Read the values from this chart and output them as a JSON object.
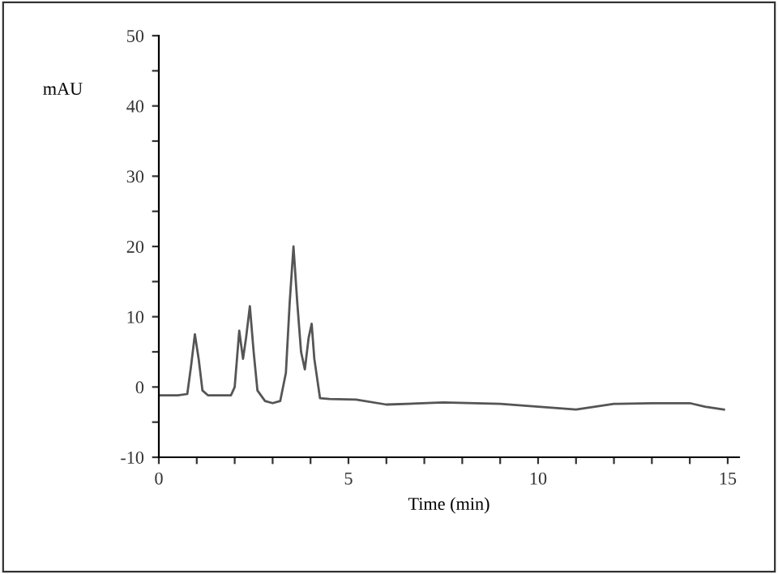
{
  "chart_data": {
    "type": "line",
    "xlabel": "Time (min)",
    "ylabel": "mAU",
    "xlim": [
      0,
      15.3
    ],
    "ylim": [
      -10,
      50
    ],
    "xticks": [
      0,
      {
        "value": 1,
        "label": null
      },
      {
        "value": 2,
        "label": null
      },
      {
        "value": 3,
        "label": null
      },
      {
        "value": 4,
        "label": null
      },
      5,
      {
        "value": 6,
        "label": null
      },
      {
        "value": 7,
        "label": null
      },
      {
        "value": 8,
        "label": null
      },
      {
        "value": 9,
        "label": null
      },
      10,
      {
        "value": 11,
        "label": null
      },
      {
        "value": 12,
        "label": null
      },
      {
        "value": 13,
        "label": null
      },
      {
        "value": 14,
        "label": null
      },
      15
    ],
    "yticks": [
      -10,
      {
        "value": -5,
        "label": null
      },
      0,
      {
        "value": 5,
        "label": null
      },
      10,
      {
        "value": 15,
        "label": null
      },
      20,
      {
        "value": 25,
        "label": null
      },
      30,
      {
        "value": 35,
        "label": null
      },
      40,
      {
        "value": 45,
        "label": null
      },
      50
    ],
    "grid": false,
    "legend": false,
    "marker": "none",
    "line_style": "solid",
    "series": [
      {
        "color": "#555555",
        "x": [
          0,
          0.5,
          0.75,
          0.85,
          0.95,
          1.05,
          1.15,
          1.3,
          1.9,
          2.0,
          2.12,
          2.22,
          2.3,
          2.4,
          2.5,
          2.6,
          2.8,
          3.0,
          3.2,
          3.35,
          3.45,
          3.55,
          3.65,
          3.75,
          3.85,
          3.95,
          4.03,
          4.1,
          4.25,
          4.5,
          5.2,
          6.0,
          7.5,
          9.0,
          10.0,
          11.0,
          12.0,
          13.0,
          14.0,
          14.4,
          14.9
        ],
        "values": [
          -1.2,
          -1.2,
          -1.0,
          3,
          7.5,
          4,
          -0.5,
          -1.2,
          -1.2,
          0,
          8,
          4,
          7,
          11.5,
          5,
          -0.5,
          -2,
          -2.3,
          -2,
          2,
          12,
          20,
          12,
          5,
          2.5,
          7,
          9,
          4,
          -1.6,
          -1.7,
          -1.8,
          -2.5,
          -2.2,
          -2.4,
          -2.8,
          -3.2,
          -2.4,
          -2.3,
          -2.3,
          -2.8,
          -3.2
        ]
      }
    ]
  }
}
